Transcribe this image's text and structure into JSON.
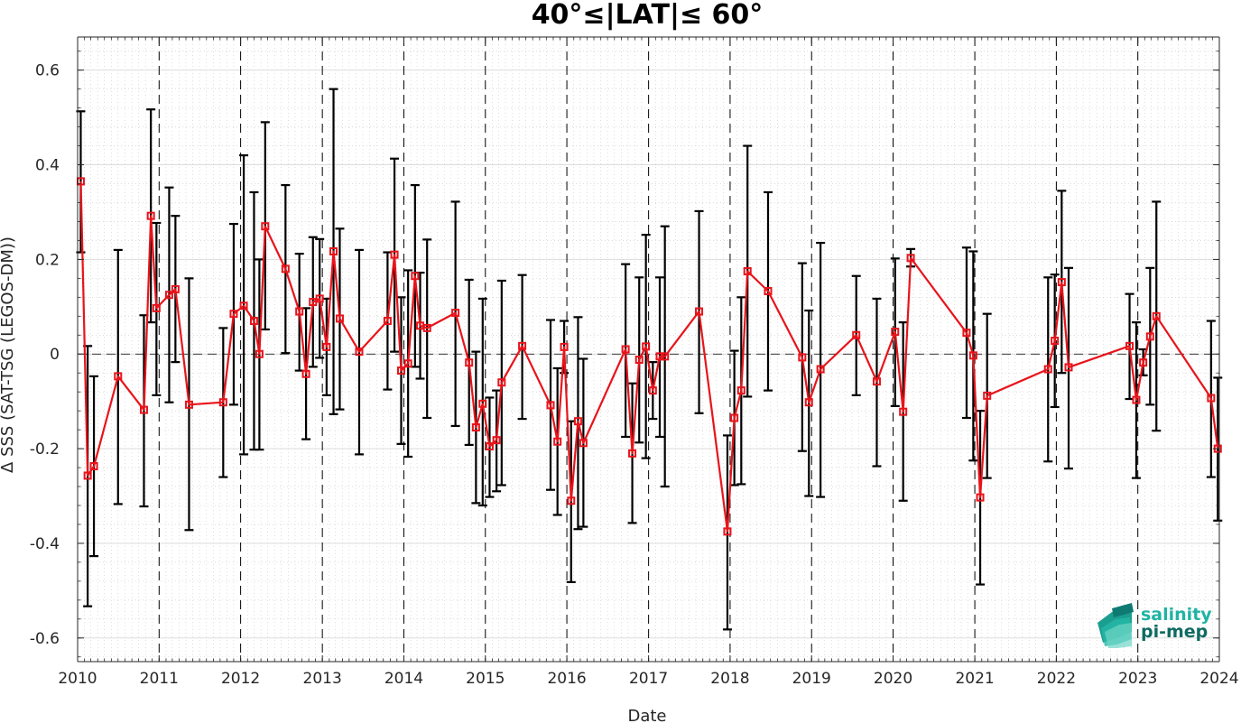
{
  "chart_data": {
    "type": "line",
    "title": "40°≤|LAT|≤ 60°",
    "xlabel": "Date",
    "ylabel": "Δ SSS (SAT-TSG (LEGOS-DM))",
    "xlim": [
      "2010-01-01",
      "2024-01-01"
    ],
    "ylim": [
      -0.65,
      0.67
    ],
    "xticks": [
      "2010",
      "2011",
      "2012",
      "2013",
      "2014",
      "2015",
      "2016",
      "2017",
      "2018",
      "2019",
      "2020",
      "2021",
      "2022",
      "2023",
      "2024"
    ],
    "yticks": [
      -0.6,
      -0.4,
      -0.2,
      0,
      0.2,
      0.4,
      0.6
    ],
    "ytick_labels": [
      "-0.6",
      "-0.4",
      "-0.2",
      "0",
      "0.2",
      "0.4",
      "0.6"
    ],
    "grid": "on (major and minor, dotted)",
    "year_boundary_lines": "dashed vertical at each January",
    "zero_line": "dashed horizontal at 0",
    "series": [
      {
        "color": "#e8141b",
        "marker": "square",
        "errorbar_color": "#000000",
        "points": [
          {
            "date": "2010-01-15",
            "mean": 0.365,
            "low": 0.215,
            "high": 0.513
          },
          {
            "date": "2010-02-15",
            "mean": -0.257,
            "low": -0.533,
            "high": 0.017
          },
          {
            "date": "2010-03-15",
            "mean": -0.237,
            "low": -0.427,
            "high": -0.047
          },
          {
            "date": "2010-07-01",
            "mean": -0.047,
            "low": -0.317,
            "high": 0.22
          },
          {
            "date": "2010-10-25",
            "mean": -0.118,
            "low": -0.322,
            "high": 0.082
          },
          {
            "date": "2010-11-25",
            "mean": 0.292,
            "low": 0.067,
            "high": 0.517
          },
          {
            "date": "2010-12-20",
            "mean": 0.097,
            "low": -0.087,
            "high": 0.277
          },
          {
            "date": "2011-02-15",
            "mean": 0.125,
            "low": -0.102,
            "high": 0.352
          },
          {
            "date": "2011-03-15",
            "mean": 0.137,
            "low": -0.017,
            "high": 0.292
          },
          {
            "date": "2011-05-15",
            "mean": -0.107,
            "low": -0.372,
            "high": 0.16
          },
          {
            "date": "2011-10-15",
            "mean": -0.102,
            "low": -0.26,
            "high": 0.055
          },
          {
            "date": "2011-12-01",
            "mean": 0.085,
            "low": -0.107,
            "high": 0.275
          },
          {
            "date": "2012-01-15",
            "mean": 0.102,
            "low": -0.212,
            "high": 0.42
          },
          {
            "date": "2012-03-01",
            "mean": 0.07,
            "low": -0.202,
            "high": 0.342
          },
          {
            "date": "2012-03-25",
            "mean": 0.0,
            "low": -0.202,
            "high": 0.2
          },
          {
            "date": "2012-04-20",
            "mean": 0.27,
            "low": 0.052,
            "high": 0.49
          },
          {
            "date": "2012-07-20",
            "mean": 0.18,
            "low": 0.002,
            "high": 0.357
          },
          {
            "date": "2012-09-20",
            "mean": 0.09,
            "low": -0.035,
            "high": 0.212
          },
          {
            "date": "2012-10-20",
            "mean": -0.042,
            "low": -0.18,
            "high": 0.097
          },
          {
            "date": "2012-11-20",
            "mean": 0.11,
            "low": -0.027,
            "high": 0.247
          },
          {
            "date": "2012-12-20",
            "mean": 0.117,
            "low": -0.008,
            "high": 0.243
          },
          {
            "date": "2013-01-20",
            "mean": 0.015,
            "low": -0.087,
            "high": 0.117
          },
          {
            "date": "2013-02-20",
            "mean": 0.217,
            "low": -0.127,
            "high": 0.56
          },
          {
            "date": "2013-03-20",
            "mean": 0.075,
            "low": -0.117,
            "high": 0.265
          },
          {
            "date": "2013-06-15",
            "mean": 0.005,
            "low": -0.212,
            "high": 0.22
          },
          {
            "date": "2013-10-20",
            "mean": 0.07,
            "low": -0.075,
            "high": 0.215
          },
          {
            "date": "2013-11-20",
            "mean": 0.21,
            "low": 0.005,
            "high": 0.413
          },
          {
            "date": "2013-12-20",
            "mean": -0.035,
            "low": -0.19,
            "high": 0.12
          },
          {
            "date": "2014-01-20",
            "mean": -0.02,
            "low": -0.217,
            "high": 0.177
          },
          {
            "date": "2014-02-20",
            "mean": 0.165,
            "low": -0.027,
            "high": 0.357
          },
          {
            "date": "2014-03-15",
            "mean": 0.06,
            "low": -0.052,
            "high": 0.172
          },
          {
            "date": "2014-04-15",
            "mean": 0.055,
            "low": -0.135,
            "high": 0.242
          },
          {
            "date": "2014-08-20",
            "mean": 0.087,
            "low": -0.152,
            "high": 0.322
          },
          {
            "date": "2014-10-20",
            "mean": -0.018,
            "low": -0.192,
            "high": 0.157
          },
          {
            "date": "2014-11-20",
            "mean": -0.155,
            "low": -0.315,
            "high": 0.005
          },
          {
            "date": "2014-12-20",
            "mean": -0.105,
            "low": -0.32,
            "high": 0.117
          },
          {
            "date": "2015-01-20",
            "mean": -0.195,
            "low": -0.302,
            "high": -0.092
          },
          {
            "date": "2015-02-20",
            "mean": -0.182,
            "low": -0.29,
            "high": -0.077
          },
          {
            "date": "2015-03-15",
            "mean": -0.06,
            "low": -0.277,
            "high": 0.155
          },
          {
            "date": "2015-06-15",
            "mean": 0.017,
            "low": -0.137,
            "high": 0.167
          },
          {
            "date": "2015-10-20",
            "mean": -0.108,
            "low": -0.287,
            "high": 0.072
          },
          {
            "date": "2015-11-20",
            "mean": -0.185,
            "low": -0.34,
            "high": -0.03
          },
          {
            "date": "2015-12-20",
            "mean": 0.015,
            "low": -0.04,
            "high": 0.07
          },
          {
            "date": "2016-01-20",
            "mean": -0.31,
            "low": -0.482,
            "high": -0.142
          },
          {
            "date": "2016-02-20",
            "mean": -0.142,
            "low": -0.37,
            "high": 0.078
          },
          {
            "date": "2016-03-15",
            "mean": -0.188,
            "low": -0.365,
            "high": -0.01
          },
          {
            "date": "2016-09-20",
            "mean": 0.01,
            "low": -0.175,
            "high": 0.19
          },
          {
            "date": "2016-10-20",
            "mean": -0.21,
            "low": -0.357,
            "high": -0.062
          },
          {
            "date": "2016-11-20",
            "mean": -0.012,
            "low": -0.187,
            "high": 0.162
          },
          {
            "date": "2016-12-20",
            "mean": 0.016,
            "low": -0.22,
            "high": 0.252
          },
          {
            "date": "2017-01-20",
            "mean": -0.077,
            "low": -0.137,
            "high": -0.017
          },
          {
            "date": "2017-02-20",
            "mean": -0.005,
            "low": -0.175,
            "high": 0.162
          },
          {
            "date": "2017-03-15",
            "mean": -0.005,
            "low": -0.28,
            "high": 0.27
          },
          {
            "date": "2017-08-15",
            "mean": 0.09,
            "low": -0.125,
            "high": 0.302
          },
          {
            "date": "2017-12-20",
            "mean": -0.375,
            "low": -0.582,
            "high": -0.172
          },
          {
            "date": "2018-01-20",
            "mean": -0.135,
            "low": -0.277,
            "high": 0.007
          },
          {
            "date": "2018-02-20",
            "mean": -0.077,
            "low": -0.275,
            "high": 0.12
          },
          {
            "date": "2018-03-20",
            "mean": 0.175,
            "low": -0.09,
            "high": 0.44
          },
          {
            "date": "2018-06-20",
            "mean": 0.133,
            "low": -0.077,
            "high": 0.342
          },
          {
            "date": "2018-11-20",
            "mean": -0.007,
            "low": -0.205,
            "high": 0.192
          },
          {
            "date": "2018-12-20",
            "mean": -0.102,
            "low": -0.3,
            "high": 0.092
          },
          {
            "date": "2019-02-10",
            "mean": -0.032,
            "low": -0.302,
            "high": 0.235
          },
          {
            "date": "2019-07-20",
            "mean": 0.04,
            "low": -0.087,
            "high": 0.165
          },
          {
            "date": "2019-10-20",
            "mean": -0.058,
            "low": -0.237,
            "high": 0.117
          },
          {
            "date": "2020-01-10",
            "mean": 0.047,
            "low": -0.11,
            "high": 0.202
          },
          {
            "date": "2020-02-15",
            "mean": -0.122,
            "low": -0.31,
            "high": 0.067
          },
          {
            "date": "2020-03-20",
            "mean": 0.203,
            "low": 0.185,
            "high": 0.222
          },
          {
            "date": "2020-11-25",
            "mean": 0.045,
            "low": -0.135,
            "high": 0.225
          },
          {
            "date": "2020-12-25",
            "mean": -0.003,
            "low": -0.225,
            "high": 0.217
          },
          {
            "date": "2021-01-25",
            "mean": -0.303,
            "low": -0.487,
            "high": -0.12
          },
          {
            "date": "2021-02-25",
            "mean": -0.088,
            "low": -0.262,
            "high": 0.085
          },
          {
            "date": "2021-11-25",
            "mean": -0.032,
            "low": -0.227,
            "high": 0.162
          },
          {
            "date": "2021-12-25",
            "mean": 0.028,
            "low": -0.112,
            "high": 0.168
          },
          {
            "date": "2022-01-25",
            "mean": 0.152,
            "low": -0.04,
            "high": 0.345
          },
          {
            "date": "2022-02-25",
            "mean": -0.028,
            "low": -0.242,
            "high": 0.182
          },
          {
            "date": "2022-11-25",
            "mean": 0.017,
            "low": -0.095,
            "high": 0.127
          },
          {
            "date": "2022-12-25",
            "mean": -0.097,
            "low": -0.262,
            "high": 0.067
          },
          {
            "date": "2023-01-25",
            "mean": -0.018,
            "low": -0.045,
            "high": 0.01
          },
          {
            "date": "2023-02-25",
            "mean": 0.037,
            "low": -0.107,
            "high": 0.182
          },
          {
            "date": "2023-03-25",
            "mean": 0.08,
            "low": -0.162,
            "high": 0.322
          },
          {
            "date": "2023-11-25",
            "mean": -0.093,
            "low": -0.26,
            "high": 0.07
          },
          {
            "date": "2023-12-25",
            "mean": -0.2,
            "low": -0.352,
            "high": -0.05
          }
        ]
      }
    ]
  },
  "logo": {
    "line1": "salinity",
    "line2": "pi-mep",
    "color_dark": "#0e7a72",
    "color_light": "#20b3a3"
  },
  "colors": {
    "line": "#e8141b",
    "errorbar": "#000000",
    "grid": "#c8c8c8"
  }
}
